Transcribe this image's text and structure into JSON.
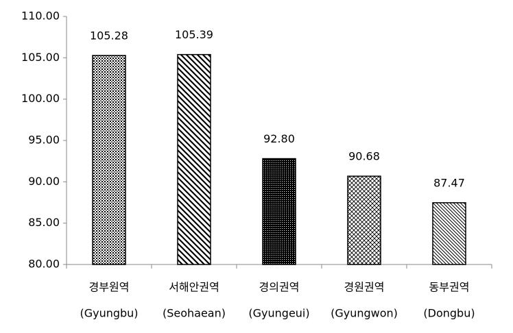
{
  "chart_data": {
    "type": "bar",
    "categories": [
      [
        "경부원역",
        "(Gyungbu)"
      ],
      [
        "서해안권역",
        "(Seohaean)"
      ],
      [
        "경의권역",
        "(Gyungeui)"
      ],
      [
        "경원권역",
        "(Gyungwon)"
      ],
      [
        "동부권역",
        "(Dongbu)"
      ]
    ],
    "values": [
      105.28,
      105.39,
      92.8,
      90.68,
      87.47
    ],
    "value_labels": [
      "105.28",
      "105.39",
      "92.80",
      "90.68",
      "87.47"
    ],
    "color": "#000000",
    "ylim": [
      80,
      110
    ],
    "yticks": [
      {
        "value": 80,
        "label": "80.00"
      },
      {
        "value": 85,
        "label": "85.00"
      },
      {
        "value": 90,
        "label": "90.00"
      },
      {
        "value": 95,
        "label": "95.00"
      },
      {
        "value": 100,
        "label": "100.00"
      },
      {
        "value": 105,
        "label": "105.00"
      },
      {
        "value": 110,
        "label": "110.00"
      }
    ],
    "grid": false
  }
}
